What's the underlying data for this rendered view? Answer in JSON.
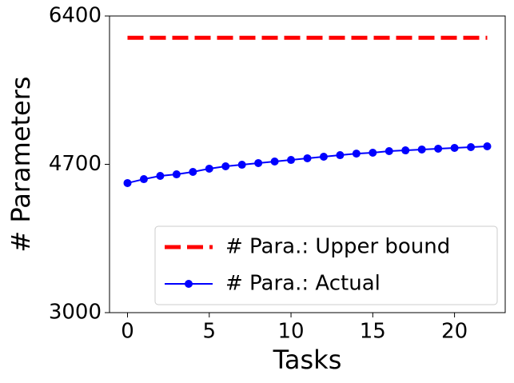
{
  "chart_data": {
    "type": "line",
    "x_label": "Tasks",
    "y_label": "# Parameters",
    "x": [
      0,
      1,
      2,
      3,
      4,
      5,
      6,
      7,
      8,
      9,
      10,
      11,
      12,
      13,
      14,
      15,
      16,
      17,
      18,
      19,
      20,
      21,
      22
    ],
    "series": [
      {
        "name": "# Para.: Upper bound",
        "color": "#ff0000",
        "style": "dashed",
        "marker": false,
        "values": [
          6150,
          6150,
          6150,
          6150,
          6150,
          6150,
          6150,
          6150,
          6150,
          6150,
          6150,
          6150,
          6150,
          6150,
          6150,
          6150,
          6150,
          6150,
          6150,
          6150,
          6150,
          6150,
          6150
        ]
      },
      {
        "name": "# Para.: Actual",
        "color": "#0000ff",
        "style": "solid",
        "marker": true,
        "values": [
          4485,
          4530,
          4567,
          4585,
          4613,
          4650,
          4677,
          4695,
          4714,
          4732,
          4750,
          4769,
          4787,
          4805,
          4823,
          4833,
          4851,
          4860,
          4870,
          4879,
          4888,
          4897,
          4906
        ]
      }
    ],
    "xlim": [
      -1.1,
      23.1
    ],
    "xticks": [
      0,
      5,
      10,
      15,
      20
    ],
    "ylim": [
      3000,
      6400
    ],
    "yticks": [
      3000,
      4700,
      6400
    ],
    "legend": "lower right"
  }
}
